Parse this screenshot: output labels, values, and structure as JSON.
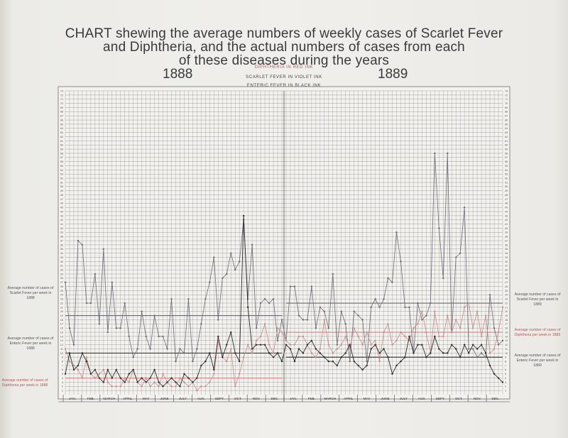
{
  "title_lines": [
    "CHART shewing the average numbers of weekly cases of Scarlet Fever",
    "and Diphtheria, and the actual numbers of cases from each",
    "of these diseases during the years"
  ],
  "years": [
    "1888",
    "1889"
  ],
  "ink_legend": [
    "DIPHTHERIA IN RED INK",
    "SCARLET FEVER IN VIOLET INK",
    "ENTERIC FEVER IN BLACK INK"
  ],
  "side_notes": {
    "left": [
      "Average number of cases of Scarlet Fever per week in 1888",
      "Average number of cases of Enteric Fever per week in 1888",
      "Average number of cases of Diphtheria per week in 1888"
    ],
    "right": [
      "Average number of cases of Scarlet Fever per week in 1889",
      "Average number of cases of Diphtheria per week in 1889",
      "Average number of cases of Enteric Fever per week in 1889"
    ]
  },
  "colors": {
    "grid": "#7f7f7f",
    "scarlet": "#6a6a74",
    "diphtheria": "#c98a8a",
    "enteric": "#2a2a2a",
    "text": "#3a3a3a"
  },
  "chart_data": {
    "type": "line",
    "title": "CHART shewing the average numbers of weekly cases of Scarlet Fever and Diphtheria, and the actual numbers of cases from each of these diseases during the years 1888 1889",
    "x": {
      "unit": "week",
      "range": [
        1,
        104
      ],
      "months": [
        "JAN.",
        "FEB.",
        "MARCH",
        "APRIL",
        "MAY",
        "JUNE",
        "JULY",
        "AUG.",
        "SEPT.",
        "OCT.",
        "NOV.",
        "DEC.",
        "JAN.",
        "FEB.",
        "MARCH",
        "APRIL",
        "MAY",
        "JUNE",
        "JULY",
        "AUG.",
        "SEPT.",
        "OCT.",
        "NOV.",
        "DEC."
      ]
    },
    "ylim": [
      0,
      73
    ],
    "y_ticks": [
      1,
      2,
      3,
      4,
      5,
      6,
      7,
      8,
      9,
      10,
      11,
      12,
      13,
      14,
      15,
      16,
      17,
      18,
      19,
      20,
      21,
      22,
      23,
      24,
      25,
      26,
      27,
      28,
      29,
      30,
      31,
      32,
      33,
      34,
      35,
      36,
      37,
      38,
      39,
      40,
      41,
      42,
      43,
      44,
      45,
      46,
      47,
      48,
      49,
      50,
      51,
      52,
      53,
      54,
      55,
      56,
      57,
      58,
      59,
      60,
      61,
      62,
      63,
      64,
      65,
      66,
      67,
      68,
      69,
      70,
      71,
      72,
      73
    ],
    "grid": true,
    "averages": [
      {
        "name": "Scarlet Fever 1888",
        "value": 19,
        "years": "1888"
      },
      {
        "name": "Enteric Fever 1888",
        "value": 10,
        "years": "1888"
      },
      {
        "name": "Diphtheria 1888",
        "value": 4,
        "years": "1888"
      },
      {
        "name": "Scarlet Fever 1889",
        "value": 22,
        "years": "1889"
      },
      {
        "name": "Diphtheria 1889",
        "value": 15,
        "years": "1889"
      },
      {
        "name": "Enteric Fever 1889",
        "value": 9,
        "years": "1889"
      }
    ],
    "series": [
      {
        "name": "SCARLET FEVER IN VIOLET INK",
        "color": "#6a6a74",
        "values": [
          27,
          16,
          12,
          37,
          36,
          22,
          22,
          29,
          17,
          35,
          15,
          27,
          16,
          16,
          22,
          14,
          9,
          11,
          20,
          14,
          11,
          19,
          14,
          14,
          11,
          23,
          8,
          11,
          10,
          23,
          8,
          11,
          17,
          23,
          27,
          33,
          18,
          28,
          29,
          34,
          30,
          32,
          42,
          23,
          36,
          16,
          22,
          23,
          22,
          23,
          13,
          18,
          13,
          26,
          26,
          19,
          18,
          18,
          26,
          16,
          21,
          20,
          16,
          29,
          12,
          20,
          17,
          8,
          20,
          19,
          18,
          8,
          21,
          23,
          21,
          23,
          28,
          27,
          39,
          32,
          21,
          21,
          10,
          22,
          18,
          19,
          22,
          58,
          40,
          28,
          58,
          15,
          33,
          34,
          45,
          11,
          11,
          9,
          10,
          9,
          24,
          16,
          12,
          13
        ]
      },
      {
        "name": "DIPHTHERIA IN RED INK",
        "color": "#c98a8a",
        "values": [
          11,
          8,
          7,
          6,
          4,
          9,
          5,
          4,
          5,
          6,
          3,
          2,
          2,
          2,
          4,
          3,
          6,
          3,
          2,
          4,
          2,
          3,
          2,
          5,
          3,
          2,
          2,
          4,
          3,
          2,
          3,
          1,
          2,
          2,
          3,
          5,
          13,
          9,
          8,
          11,
          2,
          5,
          9,
          12,
          10,
          13,
          14,
          17,
          12,
          10,
          16,
          15,
          13,
          12,
          12,
          14,
          14,
          12,
          10,
          9,
          11,
          18,
          12,
          10,
          11,
          12,
          14,
          11,
          16,
          14,
          12,
          15,
          12,
          13,
          8,
          15,
          17,
          12,
          13,
          15,
          14,
          13,
          16,
          17,
          20,
          15,
          10,
          20,
          14,
          14,
          19,
          15,
          18,
          16,
          21,
          22,
          16,
          20,
          14,
          19,
          10,
          11,
          15,
          21
        ]
      },
      {
        "name": "ENTERIC FEVER IN BLACK INK",
        "color": "#2a2a2a",
        "values": [
          5,
          10,
          6,
          7,
          10,
          8,
          5,
          6,
          4,
          3,
          6,
          4,
          6,
          4,
          3,
          5,
          6,
          3,
          4,
          3,
          4,
          6,
          3,
          2,
          3,
          4,
          3,
          2,
          5,
          4,
          3,
          4,
          7,
          8,
          10,
          6,
          14,
          9,
          12,
          15,
          10,
          8,
          43,
          21,
          11,
          12,
          12,
          12,
          10,
          9,
          10,
          8,
          12,
          11,
          8,
          11,
          10,
          12,
          13,
          11,
          10,
          9,
          8,
          8,
          7,
          9,
          10,
          12,
          8,
          7,
          6,
          7,
          11,
          12,
          10,
          11,
          9,
          5,
          7,
          8,
          9,
          14,
          10,
          12,
          12,
          9,
          10,
          14,
          11,
          10,
          10,
          12,
          11,
          9,
          12,
          10,
          12,
          11,
          12,
          10,
          7,
          5,
          4,
          3
        ]
      }
    ],
    "ylabel_left": "",
    "ylabel_right": ""
  }
}
